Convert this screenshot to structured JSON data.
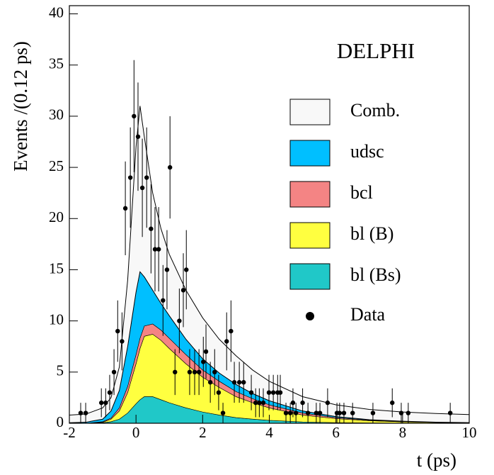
{
  "chart_data": {
    "type": "area",
    "annotation": "DELPHI",
    "x_label": "t (ps)",
    "y_label": "Events /(0.12 ps)",
    "xlim": [
      -2,
      10
    ],
    "ylim": [
      0,
      40.8
    ],
    "xticks": [
      -2,
      0,
      2,
      4,
      6,
      8,
      10
    ],
    "yticks": [
      0,
      5,
      10,
      15,
      20,
      25,
      30,
      35,
      40
    ],
    "x": [
      -2,
      -1.5,
      -1,
      -0.75,
      -0.5,
      -0.25,
      0,
      0.12,
      0.25,
      0.5,
      0.75,
      1,
      1.5,
      2,
      2.5,
      3,
      3.5,
      4,
      5,
      6,
      7,
      8,
      9,
      10
    ],
    "series": [
      {
        "name": "Comb.",
        "color": "#f8f8f8",
        "values": [
          0.75,
          0.8,
          1.1,
          1.3,
          2.3,
          6.5,
          14.2,
          16.2,
          13.7,
          9.5,
          7.3,
          6.0,
          4.8,
          4.0,
          3.3,
          2.8,
          2.3,
          1.9,
          1.4,
          1.15,
          1.0,
          0.9,
          0.85,
          0.79
        ]
      },
      {
        "name": "udsc",
        "color": "#00bfff",
        "values": [
          0.05,
          0.1,
          0.25,
          0.7,
          1.7,
          3.9,
          6.1,
          6.5,
          4.8,
          3.3,
          2.6,
          2.2,
          1.5,
          1.1,
          0.8,
          0.7,
          0.5,
          0.4,
          0.2,
          0.1,
          0.05,
          0.03,
          0.01,
          0.01
        ]
      },
      {
        "name": "bcl",
        "color": "#f48484",
        "values": [
          0,
          0,
          0.05,
          0.1,
          0.3,
          0.6,
          0.9,
          1.0,
          1.0,
          1.0,
          1.0,
          1.0,
          0.9,
          0.7,
          0.6,
          0.5,
          0.4,
          0.3,
          0.2,
          0.1,
          0.05,
          0.04,
          0.02,
          0.01
        ]
      },
      {
        "name": "bl (B)",
        "color": "#ffff40",
        "values": [
          0,
          0,
          0.05,
          0.25,
          0.8,
          2.0,
          3.9,
          5.0,
          5.9,
          6.1,
          5.8,
          5.3,
          4.3,
          3.4,
          2.7,
          2.05,
          1.6,
          1.22,
          0.67,
          0.39,
          0.22,
          0.12,
          0.07,
          0.04
        ]
      },
      {
        "name": "bl (Bs)",
        "color": "#20c8c8",
        "values": [
          0,
          0,
          0.05,
          0.15,
          0.4,
          1.0,
          1.9,
          2.3,
          2.6,
          2.6,
          2.3,
          2.0,
          1.5,
          1.1,
          0.8,
          0.55,
          0.4,
          0.28,
          0.13,
          0.06,
          0.03,
          0.01,
          0,
          0
        ]
      }
    ],
    "data": {
      "name": "Data",
      "color": "#000000",
      "x": [
        -1.66,
        -1.51,
        -1.04,
        -0.91,
        -0.79,
        -0.66,
        -0.55,
        -0.42,
        -0.32,
        -0.17,
        -0.06,
        0.06,
        0.19,
        0.32,
        0.45,
        0.57,
        0.68,
        0.81,
        0.93,
        1.02,
        1.17,
        1.3,
        1.42,
        1.51,
        1.61,
        1.76,
        1.89,
        2.02,
        2.1,
        2.23,
        2.36,
        2.48,
        2.61,
        2.72,
        2.85,
        2.95,
        3.1,
        3.23,
        3.46,
        3.59,
        3.7,
        3.82,
        3.99,
        4.12,
        4.25,
        4.33,
        4.5,
        4.63,
        4.71,
        4.8,
        5.0,
        5.16,
        5.41,
        5.52,
        5.75,
        6.03,
        6.11,
        6.24,
        6.5,
        7.11,
        7.69,
        7.96,
        8.17,
        9.43
      ],
      "values": [
        1,
        1,
        2,
        2,
        3,
        5,
        9,
        8,
        21,
        24,
        30,
        28,
        23,
        24,
        19,
        17,
        17,
        12,
        15,
        25,
        5,
        10,
        13,
        15,
        5,
        5,
        5,
        6,
        7,
        4,
        5,
        3,
        1,
        8,
        9,
        4,
        4,
        4,
        3,
        2,
        2,
        2,
        3,
        3,
        3,
        3,
        1,
        1,
        2,
        1,
        2,
        1,
        1,
        1,
        2,
        1,
        1,
        1,
        1,
        1,
        2,
        1,
        1,
        1
      ],
      "errors": [
        1,
        1,
        1.41,
        1.41,
        1.73,
        2.24,
        3,
        2.83,
        4.58,
        4.9,
        5.48,
        5.29,
        4.8,
        4.9,
        4.36,
        4.12,
        4.12,
        3.46,
        3.87,
        5,
        2.24,
        3.16,
        3.61,
        3.87,
        2.24,
        2.24,
        2.24,
        2.45,
        2.65,
        2,
        2.24,
        1.73,
        1,
        2.83,
        3,
        2,
        2,
        2,
        1.73,
        1.41,
        1.41,
        1.41,
        1.73,
        1.73,
        1.73,
        1.73,
        1,
        1,
        1.41,
        1,
        1.41,
        1,
        1,
        1,
        1.41,
        1,
        1,
        1,
        1,
        1,
        1.41,
        1,
        1,
        1
      ]
    }
  }
}
